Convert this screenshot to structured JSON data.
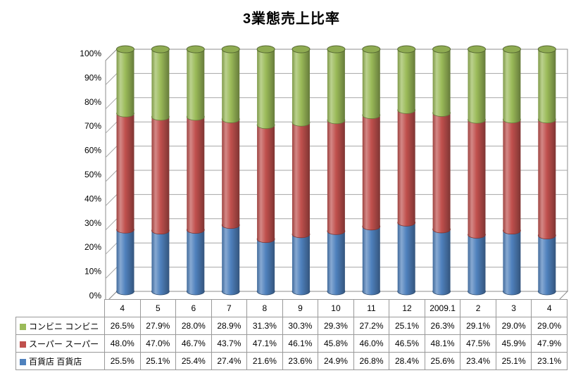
{
  "title": "3業態売上比率",
  "colors": {
    "conbini_green": "#9BBB59",
    "super_red": "#C0504D",
    "hyakkaten_blue": "#4F81BD",
    "gridline": "#A6A6A6",
    "wall_border": "#8C8C8C",
    "table_border": "#999999",
    "text": "#000000",
    "background": "#FFFFFF"
  },
  "chart_data": {
    "type": "bar",
    "subtype": "100pct-stacked-cylinder-3d",
    "title": "3業態売上比率",
    "categories": [
      "4",
      "5",
      "6",
      "7",
      "8",
      "9",
      "10",
      "11",
      "12",
      "2009.1",
      "2",
      "3",
      "4"
    ],
    "series": [
      {
        "name": "コンビニ コンビニ",
        "color": "#9BBB59",
        "values": [
          26.5,
          27.9,
          28.0,
          28.9,
          31.3,
          30.3,
          29.3,
          27.2,
          25.1,
          26.3,
          29.1,
          29.0,
          29.0
        ]
      },
      {
        "name": "スーパー スーパー",
        "color": "#C0504D",
        "values": [
          48.0,
          47.0,
          46.7,
          43.7,
          47.1,
          46.1,
          45.8,
          46.0,
          46.5,
          48.1,
          47.5,
          45.9,
          47.9
        ]
      },
      {
        "name": "百貨店 百貨店",
        "color": "#4F81BD",
        "values": [
          25.5,
          25.1,
          25.4,
          27.4,
          21.6,
          23.6,
          24.9,
          26.8,
          28.4,
          25.6,
          23.4,
          25.1,
          23.1
        ]
      }
    ],
    "stack_order_bottom_to_top": [
      "百貨店 百貨店",
      "スーパー スーパー",
      "コンビニ コンビニ"
    ],
    "xlabel": "",
    "ylabel": "",
    "ylim": [
      0,
      100
    ],
    "yticks": [
      "0%",
      "10%",
      "20%",
      "30%",
      "40%",
      "50%",
      "60%",
      "70%",
      "80%",
      "90%",
      "100%"
    ],
    "grid": true,
    "legend_position": "table-left",
    "value_format": "percent-1dp"
  }
}
